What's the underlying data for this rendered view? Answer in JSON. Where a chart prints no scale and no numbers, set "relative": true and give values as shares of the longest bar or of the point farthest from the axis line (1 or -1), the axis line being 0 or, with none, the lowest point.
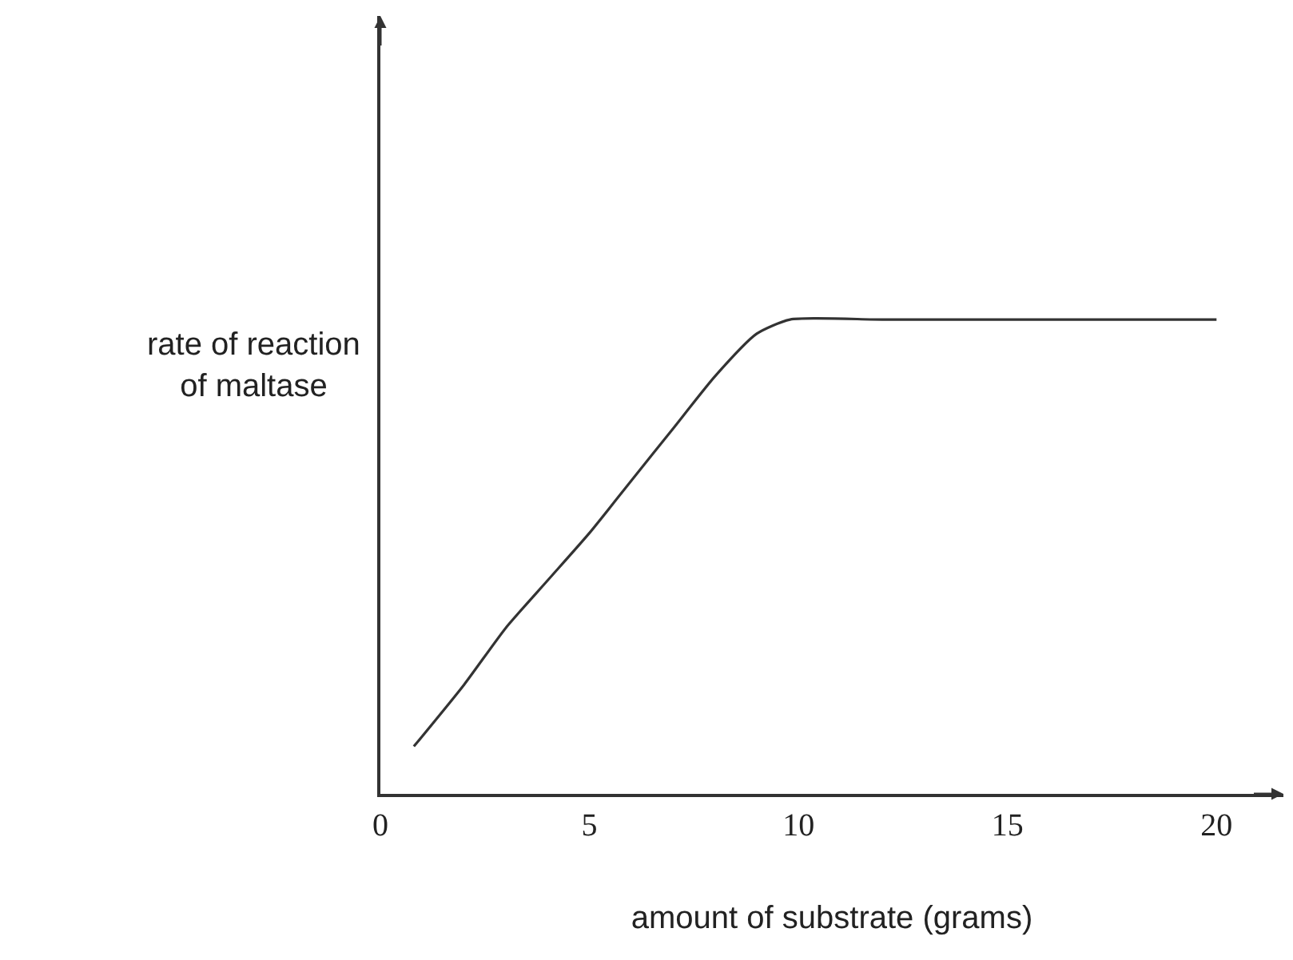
{
  "chart_data": {
    "type": "line",
    "relative": true,
    "xlabel": "amount of substrate (grams)",
    "ylabel": "rate of reaction\nof maltase",
    "x": [
      0.8,
      2,
      3,
      4,
      5,
      6,
      7,
      8,
      9,
      9.8,
      12,
      15,
      18,
      20
    ],
    "series": [
      {
        "color": "#333333",
        "values": [
          0.1,
          0.23,
          0.35,
          0.45,
          0.55,
          0.66,
          0.77,
          0.88,
          0.97,
          1.0,
          1.0,
          1.0,
          1.0,
          1.0
        ]
      }
    ],
    "xlim": [
      0,
      21.6
    ],
    "xticks": [
      0,
      5,
      10,
      15,
      20
    ],
    "marker": "none",
    "line_style": "solid",
    "tick_labels": "x"
  }
}
